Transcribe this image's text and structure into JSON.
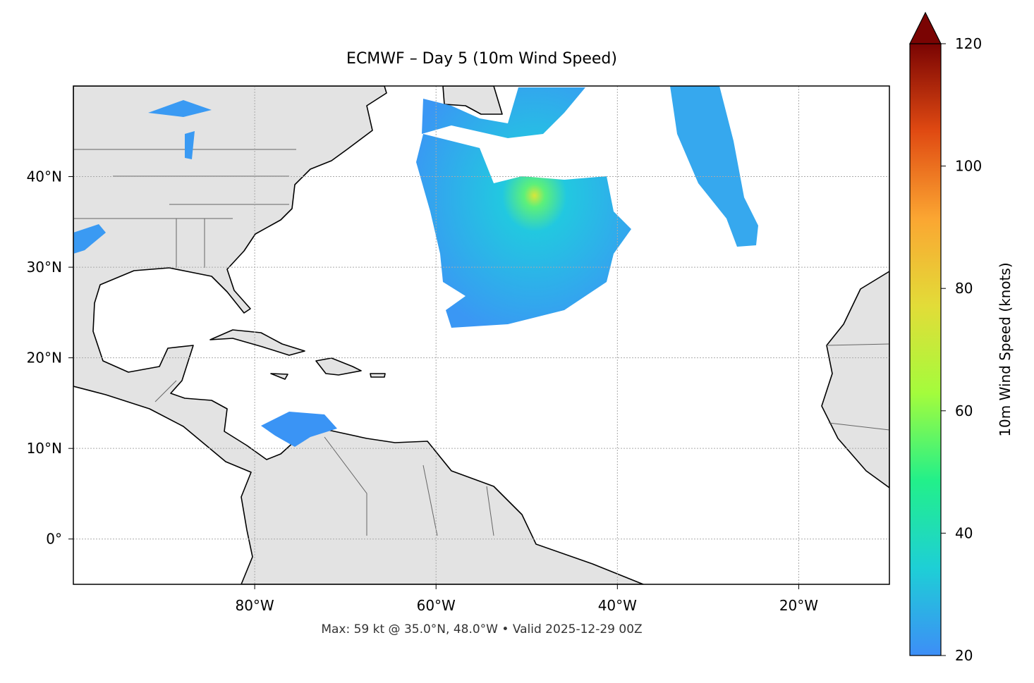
{
  "chart_data": {
    "type": "map",
    "title": "ECMWF – Day 5 (10m Wind Speed)",
    "footer": "Max: 59 kt @ 35.0°N, 48.0°W • Valid 2025-12-29 00Z",
    "xlim": [
      -100,
      -10
    ],
    "ylim": [
      -5,
      50
    ],
    "xticks": [
      {
        "value": -80,
        "label": "80°W"
      },
      {
        "value": -60,
        "label": "60°W"
      },
      {
        "value": -40,
        "label": "40°W"
      },
      {
        "value": -20,
        "label": "20°W"
      }
    ],
    "yticks": [
      {
        "value": 0,
        "label": "0°"
      },
      {
        "value": 10,
        "label": "10°N"
      },
      {
        "value": 20,
        "label": "20°N"
      },
      {
        "value": 30,
        "label": "30°N"
      },
      {
        "value": 40,
        "label": "40°N"
      }
    ],
    "grid": true,
    "colorbar": {
      "label": "10m Wind Speed (knots)",
      "lim": [
        20,
        120
      ],
      "ticks": [
        20,
        40,
        60,
        80,
        100,
        120
      ],
      "colors": [
        "#3d8ef7",
        "#1ecfd6",
        "#22f08a",
        "#a4fc3c",
        "#e2dc38",
        "#fba632",
        "#e04a12",
        "#7a0403"
      ]
    }
  }
}
